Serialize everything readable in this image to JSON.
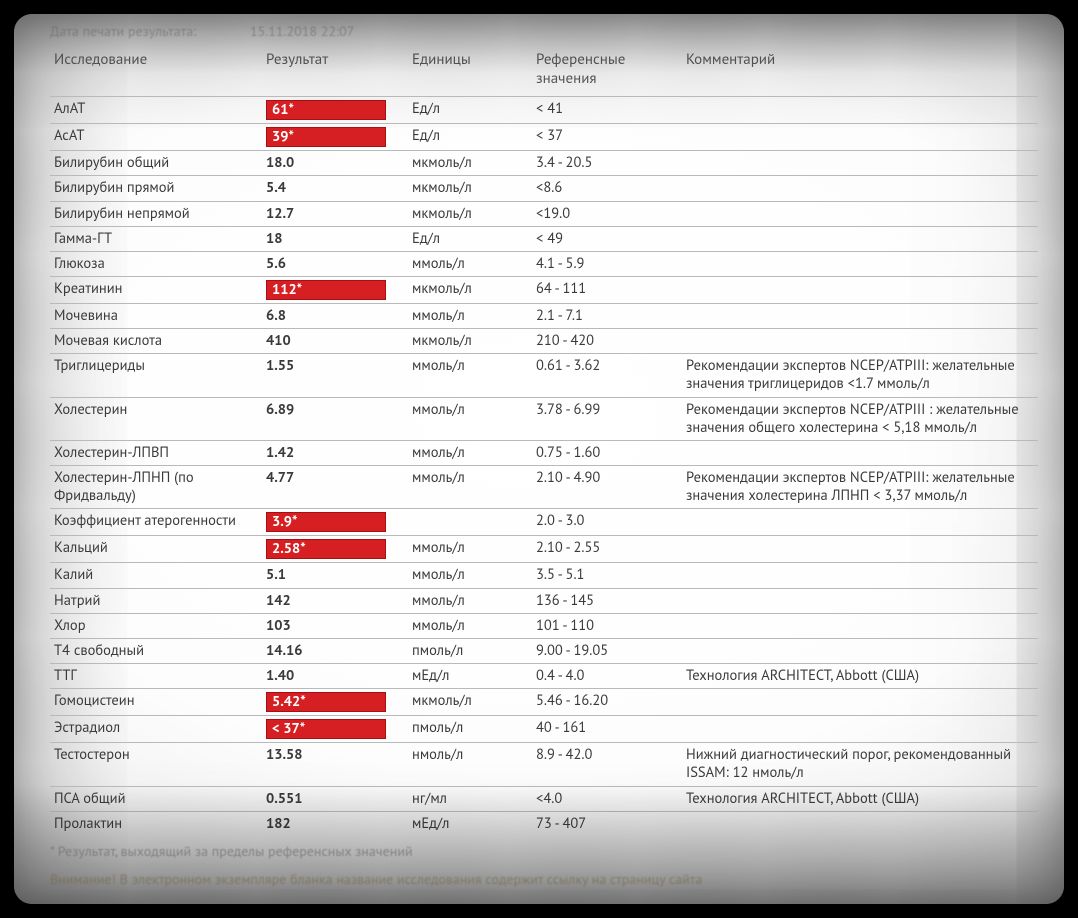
{
  "meta": {
    "print_label": "Дата печати результата:",
    "print_value": "15.11.2018 22:07"
  },
  "headers": {
    "name": "Исследование",
    "result": "Результат",
    "units": "Единицы",
    "reference": "Референсные значения",
    "comment": "Комментарий"
  },
  "rows": [
    {
      "name": "АлАТ",
      "result": "61*",
      "flag": true,
      "units": "Ед/л",
      "ref": "< 41",
      "comment": ""
    },
    {
      "name": "АсАТ",
      "result": "39*",
      "flag": true,
      "units": "Ед/л",
      "ref": "< 37",
      "comment": ""
    },
    {
      "name": "Билирубин общий",
      "result": "18.0",
      "flag": false,
      "units": "мкмоль/л",
      "ref": "3.4 - 20.5",
      "comment": ""
    },
    {
      "name": "Билирубин прямой",
      "result": "5.4",
      "flag": false,
      "units": "мкмоль/л",
      "ref": "<8.6",
      "comment": ""
    },
    {
      "name": "Билирубин непрямой",
      "result": "12.7",
      "flag": false,
      "units": "мкмоль/л",
      "ref": "<19.0",
      "comment": ""
    },
    {
      "name": "Гамма-ГТ",
      "result": "18",
      "flag": false,
      "units": "Ед/л",
      "ref": "< 49",
      "comment": ""
    },
    {
      "name": "Глюкоза",
      "result": "5.6",
      "flag": false,
      "units": "ммоль/л",
      "ref": "4.1 - 5.9",
      "comment": ""
    },
    {
      "name": "Креатинин",
      "result": "112*",
      "flag": true,
      "units": "мкмоль/л",
      "ref": "64 - 111",
      "comment": ""
    },
    {
      "name": "Мочевина",
      "result": "6.8",
      "flag": false,
      "units": "ммоль/л",
      "ref": "2.1 - 7.1",
      "comment": ""
    },
    {
      "name": "Мочевая кислота",
      "result": "410",
      "flag": false,
      "units": "мкмоль/л",
      "ref": "210 - 420",
      "comment": ""
    },
    {
      "name": "Триглицериды",
      "result": "1.55",
      "flag": false,
      "units": "ммоль/л",
      "ref": "0.61 - 3.62",
      "comment": "Рекомендации экспертов NCEP/ATPIII: желательные значения триглицеридов <1.7 ммоль/л"
    },
    {
      "name": "Холестерин",
      "result": "6.89",
      "flag": false,
      "units": "ммоль/л",
      "ref": "3.78 - 6.99",
      "comment": "Рекомендации экспертов NCEP/ATPIII : желательные значения общего холестерина < 5,18 ммоль/л"
    },
    {
      "name": "Холестерин-ЛПВП",
      "result": "1.42",
      "flag": false,
      "units": "ммоль/л",
      "ref": "0.75 - 1.60",
      "comment": ""
    },
    {
      "name": "Холестерин-ЛПНП (по Фридвальду)",
      "result": "4.77",
      "flag": false,
      "units": "ммоль/л",
      "ref": "2.10 - 4.90",
      "comment": "Рекомендации экспертов NCEP/ATPIII: желательные значения холестерина ЛПНП < 3,37 ммоль/л"
    },
    {
      "name": "Коэффициент атерогенности",
      "result": "3.9*",
      "flag": true,
      "units": "",
      "ref": "2.0 - 3.0",
      "comment": ""
    },
    {
      "name": "Кальций",
      "result": "2.58*",
      "flag": true,
      "units": "ммоль/л",
      "ref": "2.10 - 2.55",
      "comment": ""
    },
    {
      "name": "Калий",
      "result": "5.1",
      "flag": false,
      "units": "ммоль/л",
      "ref": "3.5 - 5.1",
      "comment": ""
    },
    {
      "name": "Натрий",
      "result": "142",
      "flag": false,
      "units": "ммоль/л",
      "ref": "136 - 145",
      "comment": ""
    },
    {
      "name": "Хлор",
      "result": "103",
      "flag": false,
      "units": "ммоль/л",
      "ref": "101 - 110",
      "comment": ""
    },
    {
      "name": "Т4 свободный",
      "result": "14.16",
      "flag": false,
      "units": "пмоль/л",
      "ref": "9.00 - 19.05",
      "comment": ""
    },
    {
      "name": "ТТГ",
      "result": "1.40",
      "flag": false,
      "units": "мЕд/л",
      "ref": "0.4 - 4.0",
      "comment": "Технология ARCHITECT, Abbott (США)"
    },
    {
      "name": "Гомоцистеин",
      "result": "5.42*",
      "flag": true,
      "units": "мкмоль/л",
      "ref": "5.46 - 16.20",
      "comment": ""
    },
    {
      "name": "Эстрадиол",
      "result": "< 37*",
      "flag": true,
      "units": "пмоль/л",
      "ref": "40 - 161",
      "comment": ""
    },
    {
      "name": "Тестостерон",
      "result": "13.58",
      "flag": false,
      "units": "нмоль/л",
      "ref": "8.9 - 42.0",
      "comment": "Нижний диагностический порог, рекомендованный ISSAM: 12 нмоль/л"
    },
    {
      "name": "ПСА общий",
      "result": "0.551",
      "flag": false,
      "units": "нг/мл",
      "ref": "<4.0",
      "comment": "Технология ARCHITECT, Abbott (США)"
    },
    {
      "name": "Пролактин",
      "result": "182",
      "flag": false,
      "units": "мЕд/л",
      "ref": "73 - 407",
      "comment": ""
    }
  ],
  "footnote": "* Результат, выходящий за пределы референсных значений",
  "footnote2": "Внимание! В электронном экземпляре бланка название исследования содержит ссылку на страницу сайта",
  "colors": {
    "flag_bg": "#d61f22",
    "flag_text": "#ffffff",
    "link_text": "#1a5aa8",
    "border": "#b9b9b9"
  }
}
